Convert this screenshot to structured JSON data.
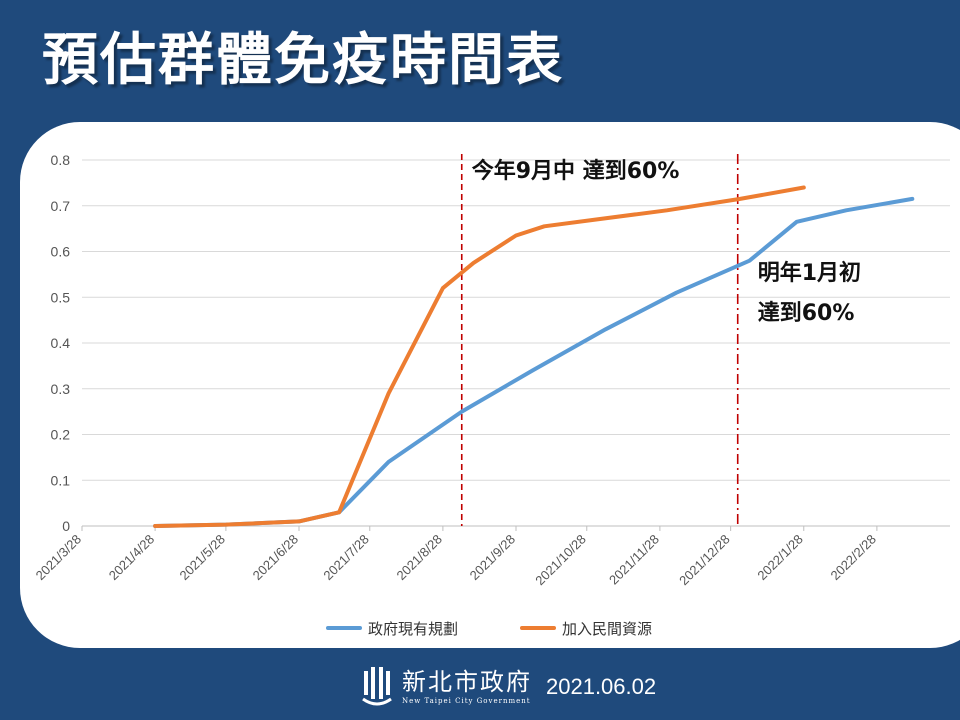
{
  "title": "預估群體免疫時間表",
  "footer": {
    "org_name": "新北市政府",
    "org_name_en": "New Taipei City Government",
    "date": "2021.06.02"
  },
  "chart_data": {
    "type": "line",
    "title": "",
    "xlabel": "",
    "ylabel": "",
    "categories": [
      "2021/3/28",
      "2021/4/28",
      "2021/5/28",
      "2021/6/28",
      "2021/7/28",
      "2021/8/28",
      "2021/9/28",
      "2021/10/28",
      "2021/11/28",
      "2021/12/28",
      "2022/1/28",
      "2022/2/28"
    ],
    "yticks": [
      "0",
      "0.1",
      "0.2",
      "0.3",
      "0.4",
      "0.5",
      "0.6",
      "0.7",
      "0.8"
    ],
    "ylim": [
      0,
      0.8
    ],
    "grid": true,
    "legend_position": "bottom",
    "series": [
      {
        "name": "政府現有規劃",
        "color": "#5b9bd5",
        "points": [
          [
            "2021/4/28",
            0.0
          ],
          [
            "2021/5/28",
            0.003
          ],
          [
            "2021/6/28",
            0.01
          ],
          [
            "2021/7/15",
            0.03
          ],
          [
            "2021/8/5",
            0.14
          ],
          [
            "2021/9/5",
            0.25
          ],
          [
            "2021/10/5",
            0.34
          ],
          [
            "2021/11/5",
            0.43
          ],
          [
            "2021/12/5",
            0.51
          ],
          [
            "2022/1/5",
            0.58
          ],
          [
            "2022/1/25",
            0.665
          ],
          [
            "2022/2/15",
            0.69
          ],
          [
            "2022/3/15",
            0.715
          ]
        ]
      },
      {
        "name": "加入民間資源",
        "color": "#ed7d31",
        "points": [
          [
            "2021/4/28",
            0.0
          ],
          [
            "2021/5/28",
            0.003
          ],
          [
            "2021/6/28",
            0.01
          ],
          [
            "2021/7/15",
            0.03
          ],
          [
            "2021/8/5",
            0.29
          ],
          [
            "2021/8/28",
            0.52
          ],
          [
            "2021/9/10",
            0.575
          ],
          [
            "2021/9/28",
            0.635
          ],
          [
            "2021/10/10",
            0.655
          ],
          [
            "2021/11/1",
            0.67
          ],
          [
            "2021/12/1",
            0.69
          ],
          [
            "2022/1/1",
            0.715
          ],
          [
            "2022/1/28",
            0.74
          ]
        ]
      }
    ],
    "vlines": [
      {
        "x": "2021/9/5",
        "color": "#c00000",
        "style": "dashed",
        "label": "今年9月中  達到60%"
      },
      {
        "x": "2021/12/31",
        "color": "#c00000",
        "style": "dashdot",
        "label_lines": [
          "明年1月初",
          "達到60%"
        ]
      }
    ]
  }
}
